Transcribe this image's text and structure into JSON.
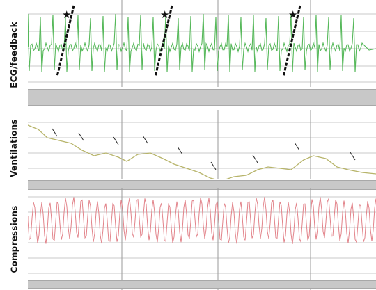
{
  "panels": [
    {
      "label": "ECG/feedback",
      "color": "#56b85a"
    },
    {
      "label": "Ventilations",
      "color": "#b7b46a"
    },
    {
      "label": "Compressions",
      "color": "#e2838a"
    }
  ],
  "colors": {
    "grid": "#c9c9c9",
    "divider": "#9a9a9a",
    "bar": "#c8c8c8",
    "marker": "#111111"
  }
}
